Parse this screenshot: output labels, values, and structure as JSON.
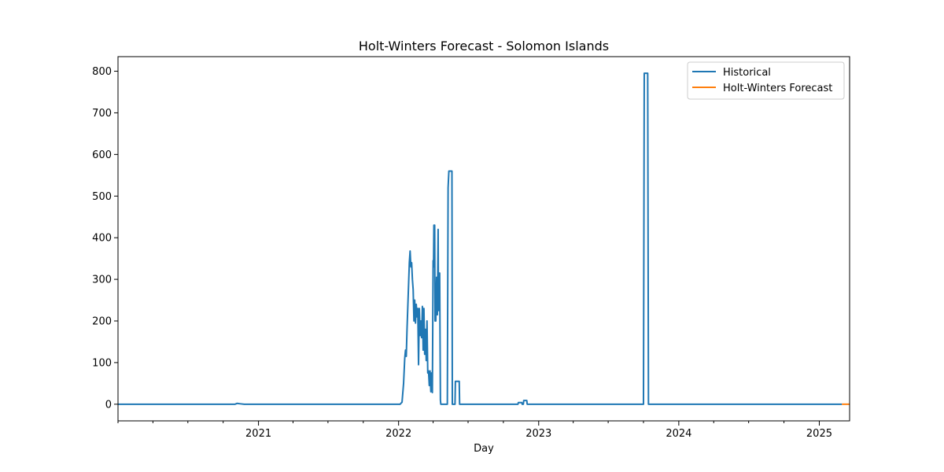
{
  "chart_data": {
    "type": "line",
    "title": "Holt-Winters Forecast - Solomon Islands",
    "xlabel": "Day",
    "ylabel": "",
    "xlim": [
      "2020-01-01",
      "2025-03-21"
    ],
    "ylim": [
      -40,
      835
    ],
    "x_ticks": [
      "2021",
      "2022",
      "2023",
      "2024",
      "2025"
    ],
    "y_ticks": [
      0,
      100,
      200,
      300,
      400,
      500,
      600,
      700,
      800
    ],
    "grid": false,
    "legend_position": "top-right",
    "series": [
      {
        "name": "Historical",
        "color": "#1f77b4",
        "points": [
          [
            "2020-01-01",
            0
          ],
          [
            "2020-11-01",
            0
          ],
          [
            "2020-11-06",
            2
          ],
          [
            "2020-11-15",
            1
          ],
          [
            "2020-11-25",
            0
          ],
          [
            "2021-12-31",
            0
          ],
          [
            "2022-01-05",
            0
          ],
          [
            "2022-01-10",
            5
          ],
          [
            "2022-01-14",
            50
          ],
          [
            "2022-01-17",
            110
          ],
          [
            "2022-01-19",
            130
          ],
          [
            "2022-01-21",
            115
          ],
          [
            "2022-01-23",
            180
          ],
          [
            "2022-01-26",
            260
          ],
          [
            "2022-01-29",
            340
          ],
          [
            "2022-01-31",
            368
          ],
          [
            "2022-02-02",
            330
          ],
          [
            "2022-02-04",
            340
          ],
          [
            "2022-02-06",
            300
          ],
          [
            "2022-02-08",
            275
          ],
          [
            "2022-02-10",
            200
          ],
          [
            "2022-02-12",
            250
          ],
          [
            "2022-02-14",
            195
          ],
          [
            "2022-02-16",
            240
          ],
          [
            "2022-02-18",
            210
          ],
          [
            "2022-02-20",
            230
          ],
          [
            "2022-02-22",
            95
          ],
          [
            "2022-02-24",
            230
          ],
          [
            "2022-02-26",
            165
          ],
          [
            "2022-02-28",
            200
          ],
          [
            "2022-03-02",
            160
          ],
          [
            "2022-03-04",
            235
          ],
          [
            "2022-03-06",
            130
          ],
          [
            "2022-03-08",
            230
          ],
          [
            "2022-03-10",
            120
          ],
          [
            "2022-03-12",
            180
          ],
          [
            "2022-03-14",
            105
          ],
          [
            "2022-03-16",
            200
          ],
          [
            "2022-03-18",
            75
          ],
          [
            "2022-03-20",
            80
          ],
          [
            "2022-03-22",
            45
          ],
          [
            "2022-03-24",
            80
          ],
          [
            "2022-03-26",
            30
          ],
          [
            "2022-03-28",
            75
          ],
          [
            "2022-03-30",
            28
          ],
          [
            "2022-04-01",
            345
          ],
          [
            "2022-04-02",
            330
          ],
          [
            "2022-04-03",
            430
          ],
          [
            "2022-04-05",
            430
          ],
          [
            "2022-04-06",
            200
          ],
          [
            "2022-04-08",
            200
          ],
          [
            "2022-04-10",
            305
          ],
          [
            "2022-04-12",
            215
          ],
          [
            "2022-04-14",
            420
          ],
          [
            "2022-04-15",
            225
          ],
          [
            "2022-04-17",
            315
          ],
          [
            "2022-04-18",
            315
          ],
          [
            "2022-04-20",
            10
          ],
          [
            "2022-04-21",
            0
          ],
          [
            "2022-05-08",
            0
          ],
          [
            "2022-05-10",
            520
          ],
          [
            "2022-05-12",
            560
          ],
          [
            "2022-05-20",
            560
          ],
          [
            "2022-05-21",
            0
          ],
          [
            "2022-05-28",
            0
          ],
          [
            "2022-05-29",
            55
          ],
          [
            "2022-06-08",
            55
          ],
          [
            "2022-06-09",
            0
          ],
          [
            "2022-11-08",
            0
          ],
          [
            "2022-11-09",
            4
          ],
          [
            "2022-11-18",
            4
          ],
          [
            "2022-11-19",
            0
          ],
          [
            "2022-11-22",
            0
          ],
          [
            "2022-11-23",
            9
          ],
          [
            "2022-12-01",
            9
          ],
          [
            "2022-12-02",
            0
          ],
          [
            "2023-10-01",
            0
          ],
          [
            "2023-10-03",
            795
          ],
          [
            "2023-10-12",
            795
          ],
          [
            "2023-10-14",
            0
          ],
          [
            "2025-03-01",
            0
          ]
        ]
      },
      {
        "name": "Holt-Winters Forecast",
        "color": "#ff7f0e",
        "points": [
          [
            "2025-03-01",
            0
          ],
          [
            "2025-03-21",
            0
          ]
        ]
      }
    ]
  }
}
